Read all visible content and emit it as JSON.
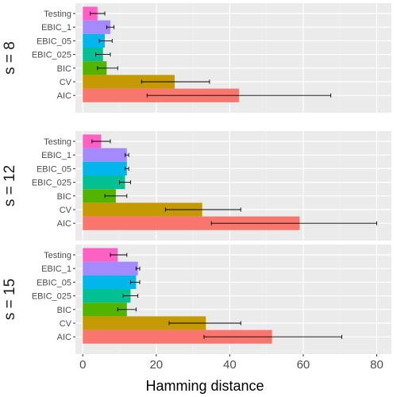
{
  "chart_data": {
    "type": "bar",
    "orientation": "horizontal",
    "title": "",
    "xlabel": "Hamming distance",
    "ylabel": "",
    "xlim": [
      -2,
      84
    ],
    "xticks": [
      0,
      20,
      40,
      60,
      80
    ],
    "grid": true,
    "legend": "none",
    "categories": [
      "Testing",
      "EBIC_1",
      "EBIC_05",
      "EBIC_025",
      "BIC",
      "CV",
      "AIC"
    ],
    "colors": {
      "Testing": "#FF61C3",
      "EBIC_1": "#A58AFF",
      "EBIC_05": "#00B6EB",
      "EBIC_025": "#00C094",
      "BIC": "#53B400",
      "CV": "#C49A00",
      "AIC": "#F8766D"
    },
    "panels": [
      {
        "label": "s = 8",
        "values": [
          4,
          7.5,
          6,
          5.5,
          6.5,
          25,
          42.5
        ],
        "err_low": [
          2,
          6.5,
          4.5,
          3.5,
          4,
          16,
          17.5
        ],
        "err_high": [
          6,
          8.5,
          8,
          7.5,
          9.5,
          34.5,
          67.5
        ]
      },
      {
        "label": "s = 12",
        "values": [
          5,
          12,
          12,
          11.5,
          9,
          32.5,
          59
        ],
        "err_low": [
          2.5,
          11.5,
          11.5,
          10,
          6,
          22.5,
          35
        ],
        "err_high": [
          7.5,
          12.5,
          12.5,
          13,
          12,
          43,
          80
        ]
      },
      {
        "label": "s = 15",
        "values": [
          9.5,
          15,
          14.5,
          13,
          12,
          33.5,
          51.5
        ],
        "err_low": [
          7.5,
          14.5,
          13,
          11,
          9.5,
          23.5,
          33
        ],
        "err_high": [
          12,
          15.5,
          15.5,
          15,
          14.5,
          43,
          70.5
        ]
      }
    ]
  }
}
